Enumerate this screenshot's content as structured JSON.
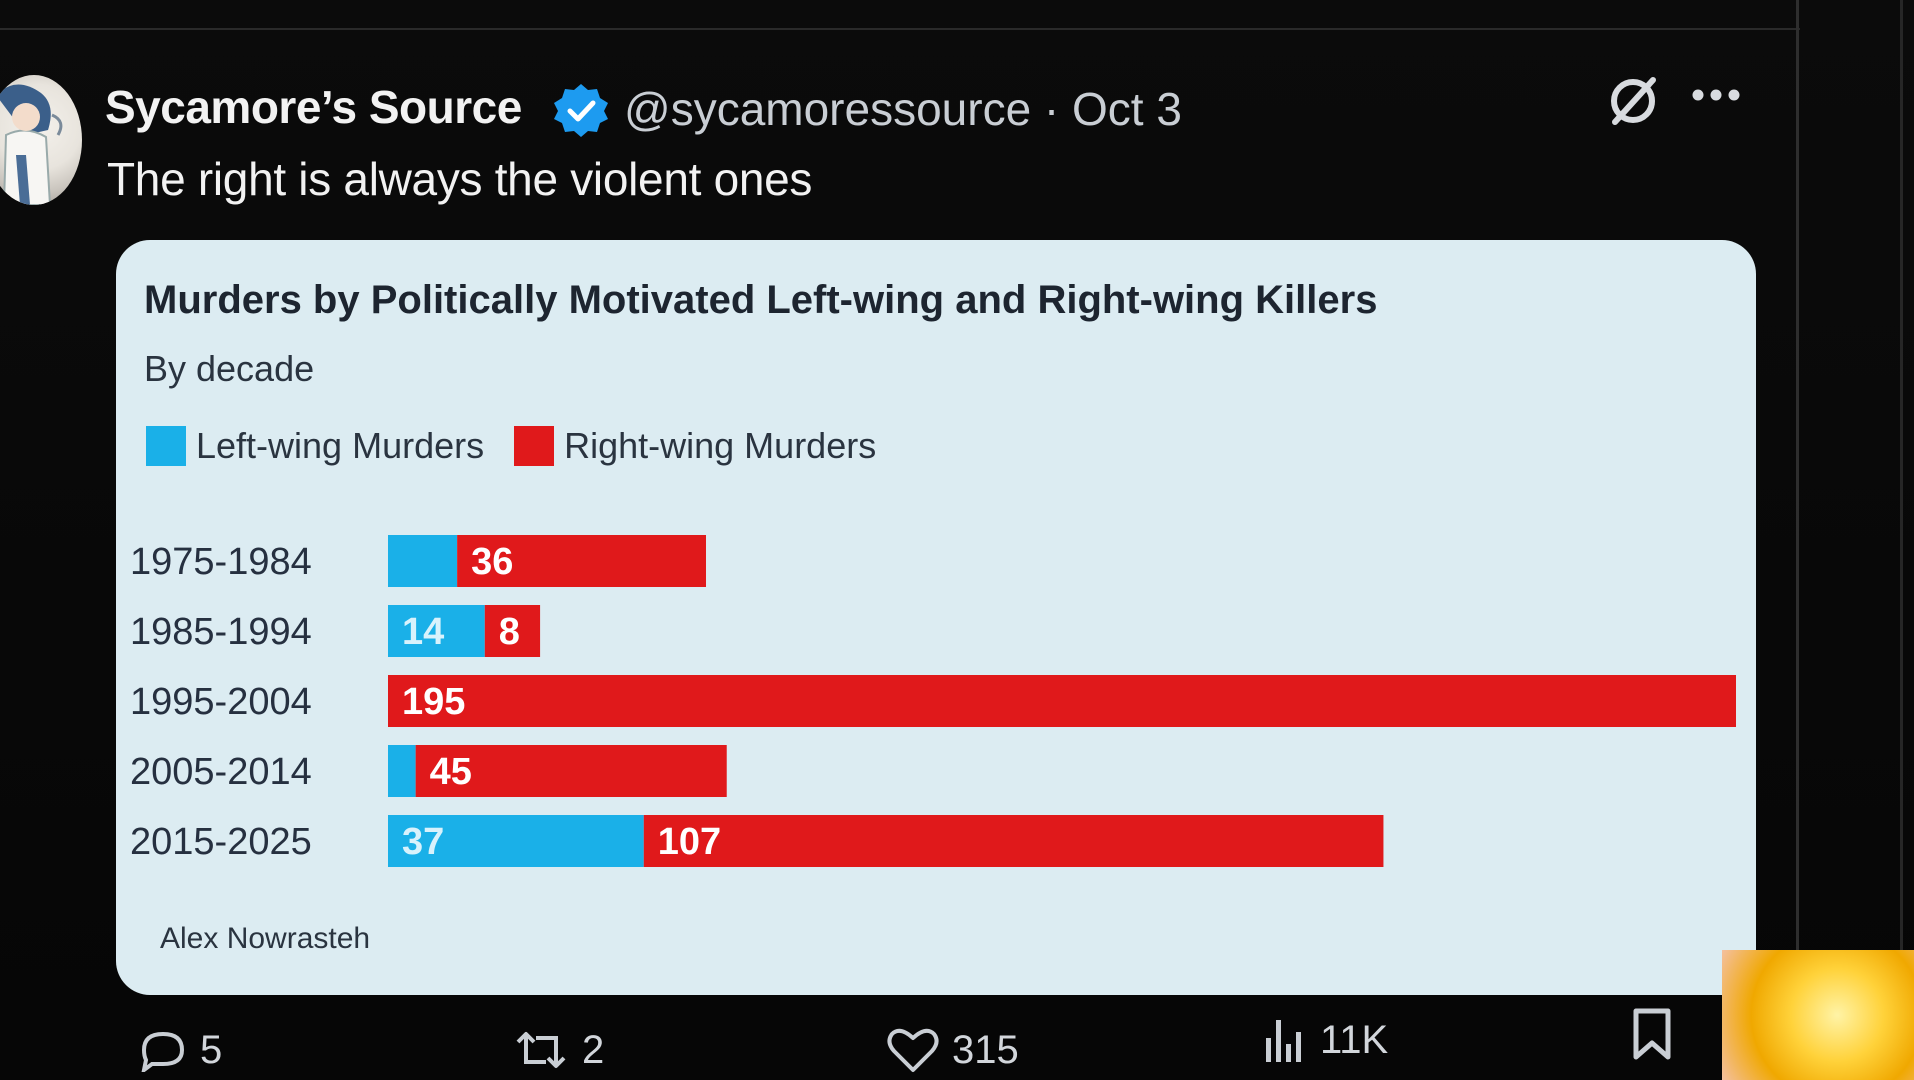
{
  "tweet": {
    "display_name": "Sycamore’s Source",
    "handle_and_date": "@sycamoressource · Oct 3",
    "text": "The right is always the violent ones",
    "verified_color": "#1d9bf0"
  },
  "actions": {
    "replies": "5",
    "reposts": "2",
    "likes": "315",
    "views": "11K"
  },
  "card": {
    "source": "Alex Nowrasteh",
    "background": "#dcecf2"
  },
  "chart_data": {
    "type": "bar",
    "orientation": "horizontal",
    "stacked": true,
    "title": "Murders by Politically Motivated Left-wing and Right-wing Killers",
    "subtitle": "By decade",
    "legend_placement": "top-left",
    "grid": false,
    "categories": [
      "1975-1984",
      "1985-1994",
      "1995-2004",
      "2005-2014",
      "2015-2025"
    ],
    "series": [
      {
        "name": "Left-wing Murders",
        "color": "#1ab0e8",
        "values": [
          10,
          14,
          0,
          4,
          37
        ],
        "labels": [
          "",
          "14",
          "",
          "",
          "37"
        ]
      },
      {
        "name": "Right-wing Murders",
        "color": "#e0191b",
        "values": [
          36,
          8,
          195,
          45,
          107
        ],
        "labels": [
          "36",
          "8",
          "195",
          "45",
          "107"
        ]
      }
    ],
    "xlim": [
      0,
      195
    ]
  }
}
